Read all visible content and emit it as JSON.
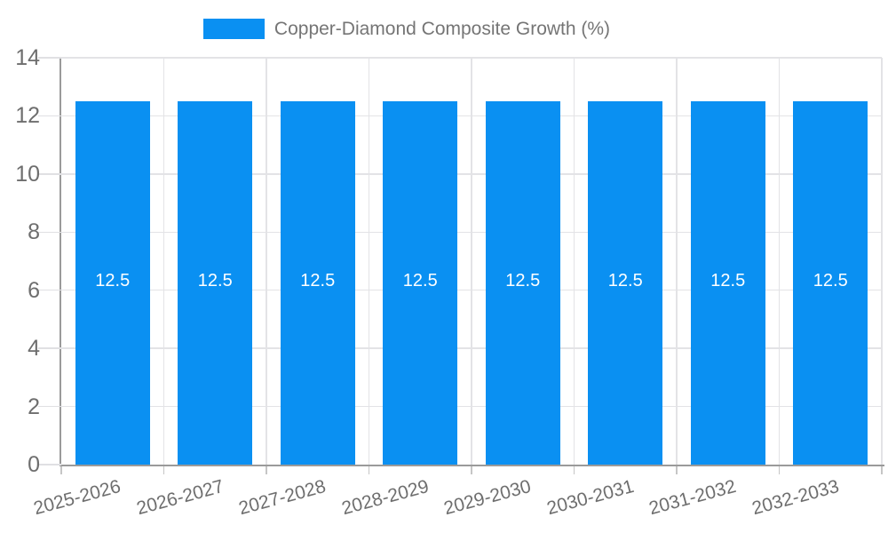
{
  "chart": {
    "legend_label": "Copper-Diamond Composite Growth (%)",
    "colors": {
      "bar": "#0A90F2",
      "legend_text": "#757575",
      "axis_text": "#6E6E6E",
      "bar_label_text": "#FFFFFF",
      "gridline": "#E3E3E6",
      "axis_line": "#9A9A9A"
    }
  },
  "chart_data": {
    "type": "bar",
    "title": "",
    "legend": [
      "Copper-Diamond Composite Growth (%)"
    ],
    "legend_position": "top",
    "categories": [
      "2025-2026",
      "2026-2027",
      "2027-2028",
      "2028-2029",
      "2029-2030",
      "2030-2031",
      "2031-2032",
      "2032-2033"
    ],
    "series": [
      {
        "name": "Copper-Diamond Composite Growth (%)",
        "values": [
          12.5,
          12.5,
          12.5,
          12.5,
          12.5,
          12.5,
          12.5,
          12.5
        ]
      }
    ],
    "value_labels": [
      "12.5",
      "12.5",
      "12.5",
      "12.5",
      "12.5",
      "12.5",
      "12.5",
      "12.5"
    ],
    "xlabel": "",
    "ylabel": "",
    "ylim": [
      0,
      14
    ],
    "yticks": [
      0,
      2,
      4,
      6,
      8,
      10,
      12,
      14
    ],
    "grid": true,
    "x_label_rotation_deg": -15
  }
}
